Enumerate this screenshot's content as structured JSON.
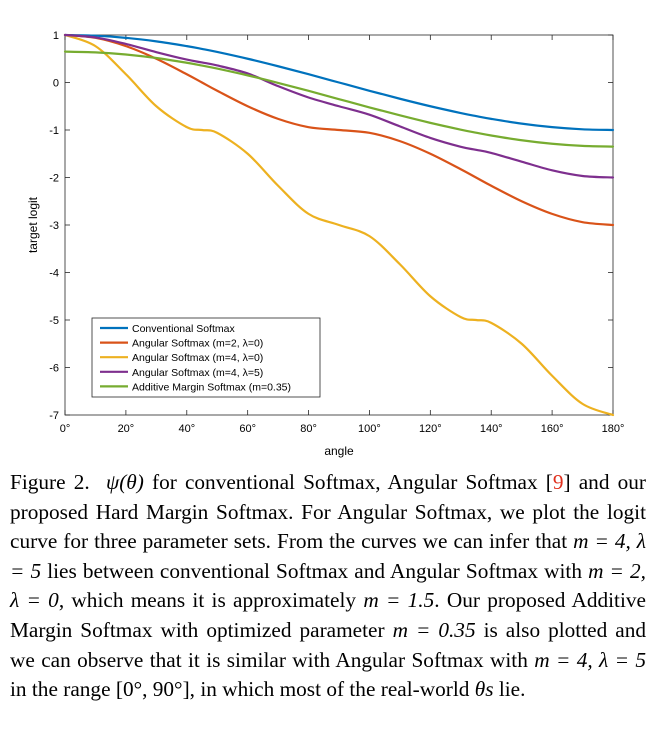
{
  "chart_data": {
    "type": "line",
    "title": "",
    "xlabel": "angle",
    "ylabel": "target logit",
    "xlim": [
      0,
      180
    ],
    "ylim": [
      -7,
      1
    ],
    "xticks": [
      0,
      20,
      40,
      60,
      80,
      100,
      120,
      140,
      160,
      180
    ],
    "xtick_labels": [
      "0°",
      "20°",
      "40°",
      "60°",
      "80°",
      "100°",
      "120°",
      "140°",
      "160°",
      "180°"
    ],
    "yticks": [
      1,
      0,
      -1,
      -2,
      -3,
      -4,
      -5,
      -6,
      -7
    ],
    "ytick_labels": [
      "1",
      "0",
      "-1",
      "-2",
      "-3",
      "-4",
      "-5",
      "-6",
      "-7"
    ],
    "grid": false,
    "legend_position": "bottom-left",
    "x": [
      0,
      10,
      20,
      30,
      40,
      45,
      50,
      60,
      70,
      80,
      90,
      100,
      110,
      120,
      130,
      135,
      140,
      150,
      160,
      170,
      180
    ],
    "series": [
      {
        "name": "Conventional Softmax",
        "color": "#0072bd",
        "values": [
          1.0,
          0.985,
          0.94,
          0.866,
          0.766,
          0.707,
          0.643,
          0.5,
          0.342,
          0.174,
          0.0,
          -0.174,
          -0.342,
          -0.5,
          -0.643,
          -0.707,
          -0.766,
          -0.866,
          -0.94,
          -0.985,
          -1.0
        ]
      },
      {
        "name": "Angular Softmax (m=2, λ=0)",
        "color": "#d95319",
        "values": [
          1.0,
          0.94,
          0.766,
          0.5,
          0.174,
          0.0,
          -0.174,
          -0.5,
          -0.766,
          -0.94,
          -1.0,
          -1.06,
          -1.234,
          -1.5,
          -1.826,
          -2.0,
          -2.174,
          -2.5,
          -2.766,
          -2.94,
          -3.0
        ]
      },
      {
        "name": "Angular Softmax (m=4, λ=0)",
        "color": "#edb120",
        "values": [
          1.0,
          0.766,
          0.174,
          -0.5,
          -0.94,
          -1.0,
          -1.06,
          -1.5,
          -2.174,
          -2.766,
          -3.0,
          -3.234,
          -3.826,
          -4.5,
          -4.94,
          -5.0,
          -5.06,
          -5.5,
          -6.174,
          -6.766,
          -7.0
        ]
      },
      {
        "name": "Angular Softmax (m=4, λ=5)",
        "color": "#7e2f8e",
        "values": [
          1.0,
          0.949,
          0.812,
          0.639,
          0.482,
          0.422,
          0.359,
          0.19,
          -0.077,
          -0.316,
          -0.5,
          -0.678,
          -0.924,
          -1.167,
          -1.354,
          -1.417,
          -1.482,
          -1.666,
          -1.849,
          -1.968,
          -2.0
        ]
      },
      {
        "name": "Additive Margin Softmax (m=0.35)",
        "color": "#77ac30",
        "values": [
          0.65,
          0.635,
          0.59,
          0.516,
          0.416,
          0.357,
          0.293,
          0.15,
          -0.008,
          -0.176,
          -0.35,
          -0.524,
          -0.692,
          -0.85,
          -0.993,
          -1.057,
          -1.116,
          -1.216,
          -1.29,
          -1.335,
          -1.35
        ]
      }
    ]
  },
  "caption": {
    "label": "Figure 2.",
    "psi_expr": "ψ(θ)",
    "text_1": " for conventional Softmax, Angular Softmax [",
    "ref": "9",
    "text_2": "] and our proposed Hard Margin Softmax. For Angular Softmax, we plot the logit curve for three parameter sets. From the curves we can infer that ",
    "param_1": "m = 4, λ = 5",
    "text_3": " lies between conventional Softmax and Angular Softmax with ",
    "param_2": "m = 2, λ = 0",
    "text_4": ", which means it is approximately ",
    "param_3": "m = 1.5",
    "text_5": ". Our proposed Additive Margin Softmax with optimized parameter ",
    "param_4": "m = 0.35",
    "text_6": " is also plotted and we can observe that it is similar with Angular Softmax with ",
    "param_5": "m = 4, λ = 5",
    "text_7": " in the range ",
    "range": "[0°, 90°]",
    "text_8": ", in which most of the real-world ",
    "theta_s": "θs",
    "text_9": " lie."
  }
}
